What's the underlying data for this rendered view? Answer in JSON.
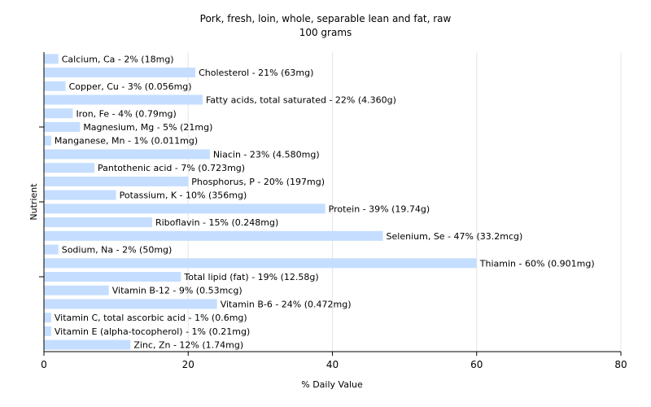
{
  "chart_data": {
    "type": "bar",
    "orientation": "horizontal",
    "title": "Pork, fresh, loin, whole, separable lean and fat, raw",
    "subtitle": "100 grams",
    "xlabel": "% Daily Value",
    "ylabel": "Nutrient",
    "xlim": [
      0,
      80
    ],
    "xticks": [
      0,
      20,
      40,
      60,
      80
    ],
    "grid": true,
    "colors": {
      "bar": "#c5deff",
      "grid": "#e6e6e6",
      "axis": "#000000"
    },
    "categories": [
      "Calcium, Ca",
      "Cholesterol",
      "Copper, Cu",
      "Fatty acids, total saturated",
      "Iron, Fe",
      "Magnesium, Mg",
      "Manganese, Mn",
      "Niacin",
      "Pantothenic acid",
      "Phosphorus, P",
      "Potassium, K",
      "Protein",
      "Riboflavin",
      "Selenium, Se",
      "Sodium, Na",
      "Thiamin",
      "Total lipid (fat)",
      "Vitamin B-12",
      "Vitamin B-6",
      "Vitamin C, total ascorbic acid",
      "Vitamin E (alpha-tocopherol)",
      "Zinc, Zn"
    ],
    "values": [
      2,
      21,
      3,
      22,
      4,
      5,
      1,
      23,
      7,
      20,
      10,
      39,
      15,
      47,
      2,
      60,
      19,
      9,
      24,
      1,
      1,
      12
    ],
    "labels": [
      "Calcium, Ca - 2% (18mg)",
      "Cholesterol - 21% (63mg)",
      "Copper, Cu - 3% (0.056mg)",
      "Fatty acids, total saturated - 22% (4.360g)",
      "Iron, Fe - 4% (0.79mg)",
      "Magnesium, Mg - 5% (21mg)",
      "Manganese, Mn - 1% (0.011mg)",
      "Niacin - 23% (4.580mg)",
      "Pantothenic acid - 7% (0.723mg)",
      "Phosphorus, P - 20% (197mg)",
      "Potassium, K - 10% (356mg)",
      "Protein - 39% (19.74g)",
      "Riboflavin - 15% (0.248mg)",
      "Selenium, Se - 47% (33.2mcg)",
      "Sodium, Na - 2% (50mg)",
      "Thiamin - 60% (0.901mg)",
      "Total lipid (fat) - 19% (12.58g)",
      "Vitamin B-12 - 9% (0.53mcg)",
      "Vitamin B-6 - 24% (0.472mg)",
      "Vitamin C, total ascorbic acid - 1% (0.6mg)",
      "Vitamin E (alpha-tocopherol) - 1% (0.21mg)",
      "Zinc, Zn - 12% (1.74mg)"
    ]
  }
}
